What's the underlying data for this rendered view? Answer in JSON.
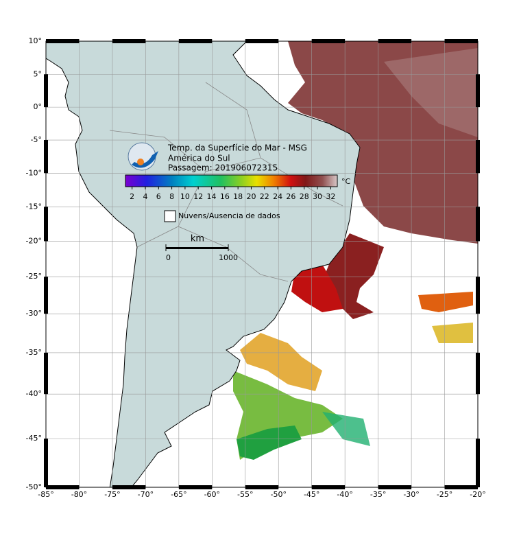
{
  "header": {
    "title": "Temp. da Superfície do Mar - MSG",
    "region": "América do Sul",
    "pass": "Passagem: 201906072315"
  },
  "colorbar": {
    "unit": "°C",
    "limits": [
      1,
      33
    ],
    "ticks": [
      2,
      4,
      6,
      8,
      10,
      12,
      14,
      16,
      18,
      20,
      22,
      24,
      26,
      28,
      30,
      32
    ]
  },
  "legend": {
    "label": "Nuvens/Ausencia de dados"
  },
  "scale_bar": {
    "unit": "km",
    "ticks": [
      0,
      1000
    ]
  },
  "map": {
    "xlim": [
      -85,
      -20
    ],
    "ylim": [
      -50,
      10
    ],
    "lon_ticks": [
      {
        "value": -85,
        "label": "-85°"
      },
      {
        "value": -80,
        "label": "-80°"
      },
      {
        "value": -75,
        "label": "-75°"
      },
      {
        "value": -70,
        "label": "-70°"
      },
      {
        "value": -65,
        "label": "-65°"
      },
      {
        "value": -60,
        "label": "-60°"
      },
      {
        "value": -55,
        "label": "-55°"
      },
      {
        "value": -50,
        "label": "-50°"
      },
      {
        "value": -45,
        "label": "-45°"
      },
      {
        "value": -40,
        "label": "-40°"
      },
      {
        "value": -35,
        "label": "-35°"
      },
      {
        "value": -30,
        "label": "-30°"
      },
      {
        "value": -25,
        "label": "-25°"
      },
      {
        "value": -20,
        "label": "-20°"
      }
    ],
    "lat_ticks": [
      {
        "value": 10,
        "label": "10°"
      },
      {
        "value": 5,
        "label": "5°"
      },
      {
        "value": 0,
        "label": "0°"
      },
      {
        "value": -5,
        "label": "-5°"
      },
      {
        "value": -10,
        "label": "-10°"
      },
      {
        "value": -15,
        "label": "-15°"
      },
      {
        "value": -20,
        "label": "-20°"
      },
      {
        "value": -25,
        "label": "-25°"
      },
      {
        "value": -30,
        "label": "-30°"
      },
      {
        "value": -35,
        "label": "-35°"
      },
      {
        "value": -40,
        "label": "-40°"
      },
      {
        "value": -45,
        "label": "-45°"
      },
      {
        "value": -50,
        "label": "-50°"
      }
    ]
  }
}
